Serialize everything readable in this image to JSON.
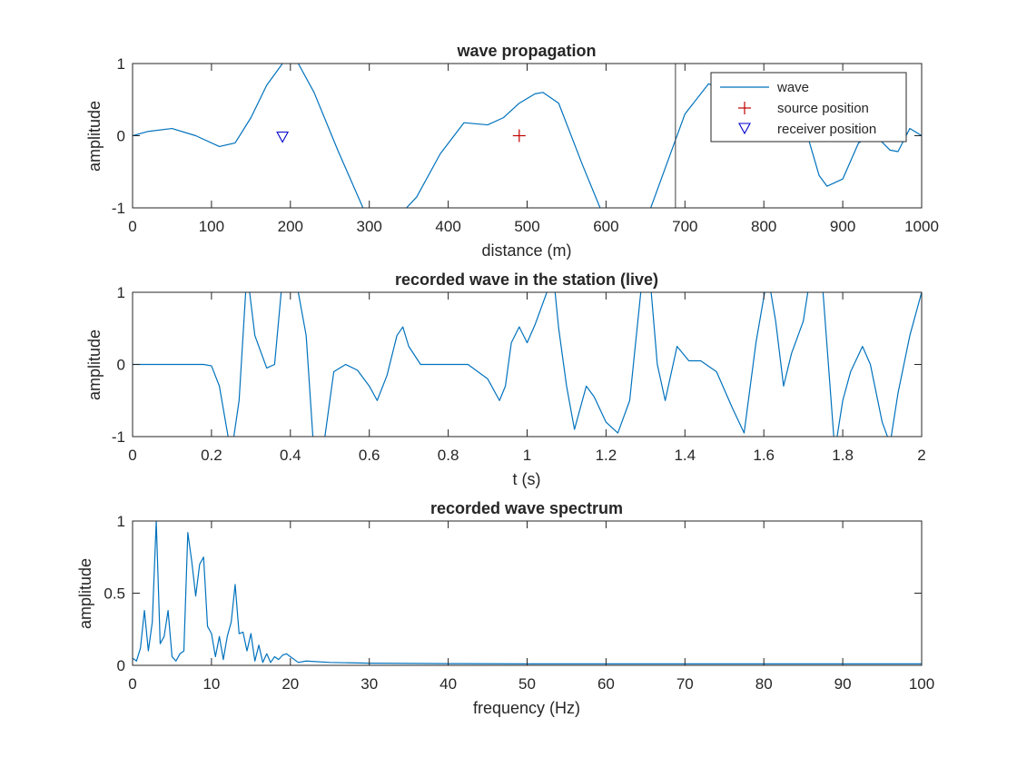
{
  "colors": {
    "line": "#0072BD",
    "source_marker": "#C00000",
    "receiver_marker": "#0000CC",
    "axes": "#262626",
    "cursor": "#404040"
  },
  "chart_data": [
    {
      "type": "line",
      "title": "wave propagation",
      "xlabel": "distance (m)",
      "ylabel": "amplitude",
      "xlim": [
        0,
        1000
      ],
      "ylim": [
        -1,
        1
      ],
      "xticks": [
        0,
        100,
        200,
        300,
        400,
        500,
        600,
        700,
        800,
        900,
        1000
      ],
      "yticks": [
        -1,
        0,
        1
      ],
      "grid": false,
      "legend_position": "top-right",
      "series": [
        {
          "name": "wave",
          "x": [
            0,
            20,
            50,
            80,
            110,
            130,
            150,
            170,
            190,
            200,
            210,
            230,
            260,
            290,
            300,
            330,
            360,
            390,
            420,
            450,
            470,
            490,
            510,
            520,
            540,
            570,
            600,
            650,
            680,
            700,
            730,
            760,
            790,
            820,
            850,
            870,
            880,
            900,
            920,
            940,
            960,
            970,
            985,
            1000
          ],
          "y": [
            0.0,
            0.06,
            0.1,
            0.0,
            -0.15,
            -0.1,
            0.25,
            0.7,
            1.0,
            1.05,
            1.0,
            0.6,
            -0.2,
            -0.95,
            -1.2,
            -1.2,
            -0.85,
            -0.25,
            0.18,
            0.15,
            0.25,
            0.45,
            0.58,
            0.6,
            0.45,
            -0.4,
            -1.2,
            -1.2,
            -0.3,
            0.3,
            0.72,
            0.55,
            0.2,
            0.0,
            0.2,
            -0.55,
            -0.7,
            -0.6,
            -0.1,
            0.02,
            -0.2,
            -0.22,
            0.1,
            0.0
          ]
        },
        {
          "name": "source position",
          "marker": "+",
          "points": [
            [
              490,
              0
            ]
          ]
        },
        {
          "name": "receiver position",
          "marker": "triangle-down",
          "points": [
            [
              190,
              0
            ]
          ]
        }
      ],
      "cursor_x": 688
    },
    {
      "type": "line",
      "title": "recorded wave in the station (live)",
      "xlabel": "t (s)",
      "ylabel": "amplitude",
      "xlim": [
        0,
        2
      ],
      "ylim": [
        -1,
        1
      ],
      "xticks": [
        0,
        0.2,
        0.4,
        0.6,
        0.8,
        1,
        1.2,
        1.4,
        1.6,
        1.8,
        2
      ],
      "yticks": [
        -1,
        0,
        1
      ],
      "grid": false,
      "series": [
        {
          "name": "",
          "x": [
            0,
            0.18,
            0.2,
            0.22,
            0.25,
            0.27,
            0.29,
            0.31,
            0.34,
            0.36,
            0.38,
            0.41,
            0.44,
            0.46,
            0.48,
            0.51,
            0.54,
            0.57,
            0.6,
            0.62,
            0.645,
            0.67,
            0.685,
            0.7,
            0.73,
            0.76,
            0.85,
            0.9,
            0.93,
            0.945,
            0.96,
            0.98,
            1.0,
            1.02,
            1.05,
            1.07,
            1.08,
            1.1,
            1.12,
            1.15,
            1.17,
            1.2,
            1.23,
            1.26,
            1.29,
            1.31,
            1.33,
            1.35,
            1.38,
            1.41,
            1.44,
            1.48,
            1.52,
            1.55,
            1.58,
            1.61,
            1.63,
            1.65,
            1.67,
            1.7,
            1.72,
            1.75,
            1.78,
            1.8,
            1.82,
            1.85,
            1.87,
            1.9,
            1.92,
            1.94,
            1.97,
            2.0
          ],
          "y": [
            0,
            0,
            -0.02,
            -0.3,
            -1.25,
            -0.5,
            1.3,
            0.4,
            -0.05,
            0.0,
            1.2,
            1.3,
            0.4,
            -1.25,
            -1.3,
            -0.1,
            0.0,
            -0.08,
            -0.3,
            -0.5,
            -0.15,
            0.4,
            0.52,
            0.25,
            0.0,
            0.0,
            0.0,
            -0.2,
            -0.5,
            -0.3,
            0.3,
            0.52,
            0.3,
            0.55,
            1.0,
            1.05,
            0.5,
            -0.3,
            -0.9,
            -0.3,
            -0.45,
            -0.8,
            -0.95,
            -0.5,
            1.1,
            1.3,
            0.0,
            -0.5,
            0.25,
            0.05,
            0.05,
            -0.1,
            -0.6,
            -0.95,
            0.3,
            1.25,
            0.6,
            -0.3,
            0.15,
            0.6,
            1.3,
            1.0,
            -1.2,
            -0.5,
            -0.1,
            0.25,
            0.0,
            -0.8,
            -1.1,
            -0.4,
            0.4,
            1.0
          ]
        }
      ]
    },
    {
      "type": "line",
      "title": "recorded wave spectrum",
      "xlabel": "frequency (Hz)",
      "ylabel": "amplitude",
      "xlim": [
        0,
        100
      ],
      "ylim": [
        0,
        1
      ],
      "xticks": [
        0,
        10,
        20,
        30,
        40,
        50,
        60,
        70,
        80,
        90,
        100
      ],
      "yticks": [
        0,
        0.5,
        1
      ],
      "grid": false,
      "series": [
        {
          "name": "",
          "x": [
            0,
            0.5,
            1,
            1.5,
            2,
            2.5,
            3,
            3.5,
            4,
            4.5,
            5,
            5.5,
            6,
            6.5,
            7,
            7.5,
            8,
            8.5,
            9,
            9.5,
            10,
            10.5,
            11,
            11.5,
            12,
            12.5,
            13,
            13.5,
            14,
            14.5,
            15,
            15.5,
            16,
            16.5,
            17,
            17.5,
            18,
            18.5,
            19,
            19.5,
            20,
            21,
            22,
            25,
            30,
            40,
            50,
            60,
            70,
            80,
            90,
            100
          ],
          "y": [
            0.05,
            0.03,
            0.12,
            0.38,
            0.1,
            0.3,
            1.0,
            0.15,
            0.2,
            0.38,
            0.06,
            0.03,
            0.08,
            0.1,
            0.92,
            0.72,
            0.48,
            0.7,
            0.75,
            0.27,
            0.22,
            0.06,
            0.2,
            0.04,
            0.2,
            0.3,
            0.56,
            0.22,
            0.23,
            0.1,
            0.22,
            0.03,
            0.14,
            0.02,
            0.08,
            0.02,
            0.06,
            0.04,
            0.07,
            0.08,
            0.06,
            0.02,
            0.03,
            0.02,
            0.015,
            0.012,
            0.01,
            0.01,
            0.01,
            0.01,
            0.01,
            0.01
          ]
        }
      ]
    }
  ]
}
